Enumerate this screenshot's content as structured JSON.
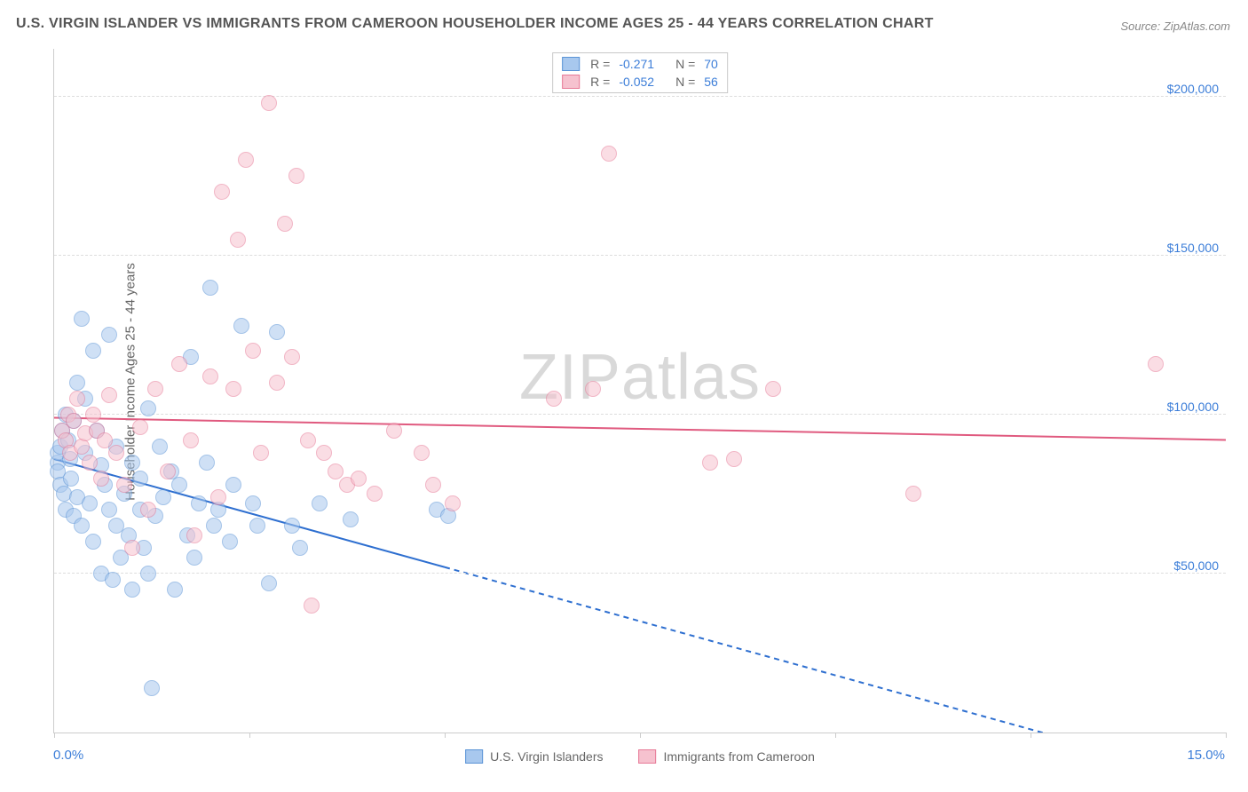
{
  "title": "U.S. VIRGIN ISLANDER VS IMMIGRANTS FROM CAMEROON HOUSEHOLDER INCOME AGES 25 - 44 YEARS CORRELATION CHART",
  "source": "Source: ZipAtlas.com",
  "ylabel": "Householder Income Ages 25 - 44 years",
  "watermark_a": "ZIP",
  "watermark_b": "atlas",
  "chart": {
    "type": "scatter",
    "xlim": [
      0,
      15
    ],
    "ylim": [
      0,
      215000
    ],
    "x_unit": "%",
    "y_unit": "$",
    "background_color": "#ffffff",
    "grid_color": "#dddddd",
    "axis_color": "#cccccc",
    "tick_label_color": "#3b7dd8",
    "axis_label_color": "#666666",
    "title_color": "#555555",
    "title_fontsize": 16,
    "label_fontsize": 15,
    "tick_fontsize": 14,
    "y_ticks": [
      {
        "v": 50000,
        "label": "$50,000"
      },
      {
        "v": 100000,
        "label": "$100,000"
      },
      {
        "v": 150000,
        "label": "$150,000"
      },
      {
        "v": 200000,
        "label": "$200,000"
      }
    ],
    "x_tick_values": [
      0,
      2.5,
      5,
      7.5,
      10,
      12.5,
      15
    ],
    "x_start_label": "0.0%",
    "x_end_label": "15.0%",
    "marker_radius": 8,
    "marker_opacity": 0.55,
    "series": [
      {
        "name": "U.S. Virgin Islanders",
        "color_fill": "#a8c8ee",
        "color_stroke": "#5a93d6",
        "R": "-0.271",
        "N": "70",
        "trend": {
          "y_at_x0": 86000,
          "y_at_x5": 52000,
          "solid_until_x": 5.0,
          "color": "#2e6fd0",
          "width": 2
        },
        "points": [
          [
            0.05,
            85000
          ],
          [
            0.05,
            88000
          ],
          [
            0.05,
            82000
          ],
          [
            0.08,
            90000
          ],
          [
            0.08,
            78000
          ],
          [
            0.1,
            95000
          ],
          [
            0.12,
            75000
          ],
          [
            0.15,
            100000
          ],
          [
            0.15,
            70000
          ],
          [
            0.18,
            92000
          ],
          [
            0.2,
            86000
          ],
          [
            0.22,
            80000
          ],
          [
            0.25,
            98000
          ],
          [
            0.25,
            68000
          ],
          [
            0.3,
            110000
          ],
          [
            0.3,
            74000
          ],
          [
            0.35,
            130000
          ],
          [
            0.35,
            65000
          ],
          [
            0.4,
            105000
          ],
          [
            0.4,
            88000
          ],
          [
            0.45,
            72000
          ],
          [
            0.5,
            120000
          ],
          [
            0.5,
            60000
          ],
          [
            0.55,
            95000
          ],
          [
            0.6,
            84000
          ],
          [
            0.6,
            50000
          ],
          [
            0.65,
            78000
          ],
          [
            0.7,
            125000
          ],
          [
            0.7,
            70000
          ],
          [
            0.75,
            48000
          ],
          [
            0.8,
            90000
          ],
          [
            0.8,
            65000
          ],
          [
            0.85,
            55000
          ],
          [
            0.9,
            75000
          ],
          [
            0.95,
            62000
          ],
          [
            1.0,
            85000
          ],
          [
            1.0,
            45000
          ],
          [
            1.1,
            70000
          ],
          [
            1.1,
            80000
          ],
          [
            1.15,
            58000
          ],
          [
            1.2,
            102000
          ],
          [
            1.2,
            50000
          ],
          [
            1.25,
            14000
          ],
          [
            1.3,
            68000
          ],
          [
            1.35,
            90000
          ],
          [
            1.4,
            74000
          ],
          [
            1.5,
            82000
          ],
          [
            1.55,
            45000
          ],
          [
            1.6,
            78000
          ],
          [
            1.7,
            62000
          ],
          [
            1.75,
            118000
          ],
          [
            1.8,
            55000
          ],
          [
            1.85,
            72000
          ],
          [
            1.95,
            85000
          ],
          [
            2.0,
            140000
          ],
          [
            2.05,
            65000
          ],
          [
            2.1,
            70000
          ],
          [
            2.25,
            60000
          ],
          [
            2.3,
            78000
          ],
          [
            2.4,
            128000
          ],
          [
            2.55,
            72000
          ],
          [
            2.6,
            65000
          ],
          [
            2.75,
            47000
          ],
          [
            2.85,
            126000
          ],
          [
            3.05,
            65000
          ],
          [
            3.15,
            58000
          ],
          [
            3.4,
            72000
          ],
          [
            3.8,
            67000
          ],
          [
            4.9,
            70000
          ],
          [
            5.05,
            68000
          ]
        ]
      },
      {
        "name": "Immigrants from Cameroon",
        "color_fill": "#f6c2cf",
        "color_stroke": "#e77a97",
        "R": "-0.052",
        "N": "56",
        "trend": {
          "y_at_x0": 99000,
          "y_at_x15": 92000,
          "solid_until_x": 15.0,
          "color": "#e05a7f",
          "width": 2
        },
        "points": [
          [
            0.1,
            95000
          ],
          [
            0.15,
            92000
          ],
          [
            0.18,
            100000
          ],
          [
            0.2,
            88000
          ],
          [
            0.25,
            98000
          ],
          [
            0.3,
            105000
          ],
          [
            0.35,
            90000
          ],
          [
            0.4,
            94000
          ],
          [
            0.45,
            85000
          ],
          [
            0.5,
            100000
          ],
          [
            0.55,
            95000
          ],
          [
            0.6,
            80000
          ],
          [
            0.65,
            92000
          ],
          [
            0.7,
            106000
          ],
          [
            0.8,
            88000
          ],
          [
            0.9,
            78000
          ],
          [
            1.0,
            58000
          ],
          [
            1.1,
            96000
          ],
          [
            1.2,
            70000
          ],
          [
            1.3,
            108000
          ],
          [
            1.45,
            82000
          ],
          [
            1.6,
            116000
          ],
          [
            1.75,
            92000
          ],
          [
            1.8,
            62000
          ],
          [
            2.0,
            112000
          ],
          [
            2.1,
            74000
          ],
          [
            2.15,
            170000
          ],
          [
            2.3,
            108000
          ],
          [
            2.35,
            155000
          ],
          [
            2.45,
            180000
          ],
          [
            2.55,
            120000
          ],
          [
            2.65,
            88000
          ],
          [
            2.75,
            198000
          ],
          [
            2.85,
            110000
          ],
          [
            2.95,
            160000
          ],
          [
            3.05,
            118000
          ],
          [
            3.1,
            175000
          ],
          [
            3.25,
            92000
          ],
          [
            3.3,
            40000
          ],
          [
            3.45,
            88000
          ],
          [
            3.6,
            82000
          ],
          [
            3.75,
            78000
          ],
          [
            3.9,
            80000
          ],
          [
            4.1,
            75000
          ],
          [
            4.35,
            95000
          ],
          [
            4.7,
            88000
          ],
          [
            4.85,
            78000
          ],
          [
            5.1,
            72000
          ],
          [
            6.4,
            105000
          ],
          [
            6.9,
            108000
          ],
          [
            7.1,
            182000
          ],
          [
            8.4,
            85000
          ],
          [
            8.7,
            86000
          ],
          [
            9.2,
            108000
          ],
          [
            11.0,
            75000
          ],
          [
            14.1,
            116000
          ]
        ]
      }
    ],
    "legend_bottom": [
      {
        "label": "U.S. Virgin Islanders",
        "fill": "#a8c8ee",
        "stroke": "#5a93d6"
      },
      {
        "label": "Immigrants from Cameroon",
        "fill": "#f6c2cf",
        "stroke": "#e77a97"
      }
    ]
  }
}
